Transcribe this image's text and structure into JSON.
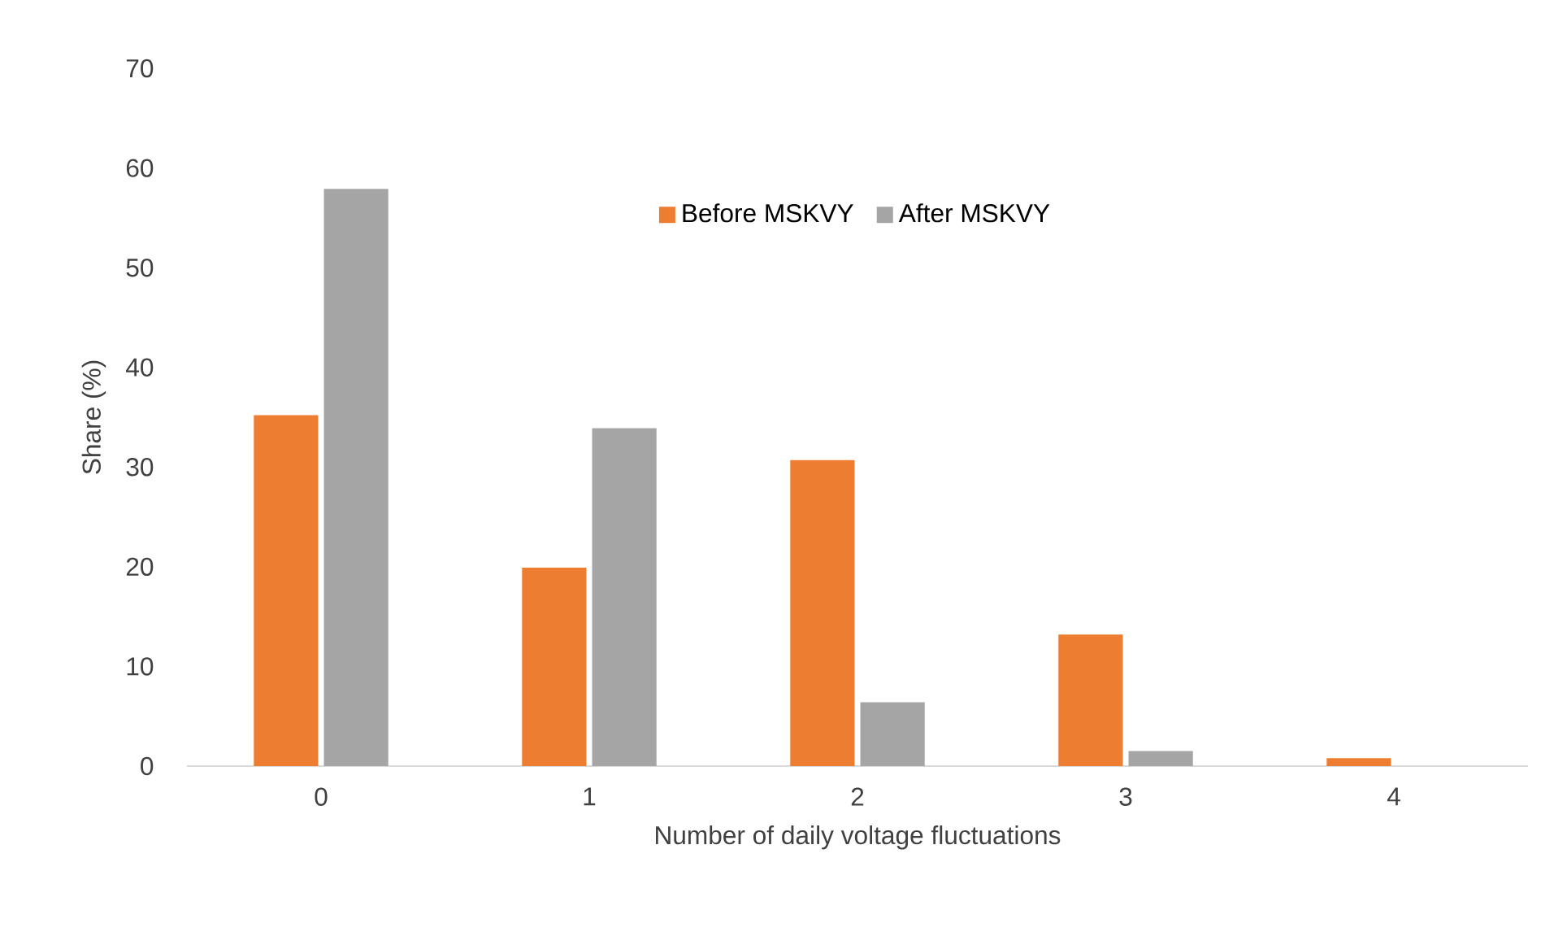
{
  "chart_data": {
    "type": "bar",
    "xlabel": "Number of daily voltage fluctuations",
    "ylabel": "Share (%)",
    "categories": [
      "0",
      "1",
      "2",
      "3",
      "4"
    ],
    "series": [
      {
        "name": "Before MSKVY",
        "color": "#ed7d31",
        "values": [
          35.2,
          19.9,
          30.7,
          13.2,
          0.8
        ]
      },
      {
        "name": "After MSKVY",
        "color": "#a5a5a5",
        "values": [
          57.9,
          33.9,
          6.4,
          1.5,
          0
        ]
      }
    ],
    "ylim": [
      0,
      70
    ],
    "yticks": [
      0,
      10,
      20,
      30,
      40,
      50,
      60,
      70
    ],
    "legend": "top",
    "grid": false
  }
}
